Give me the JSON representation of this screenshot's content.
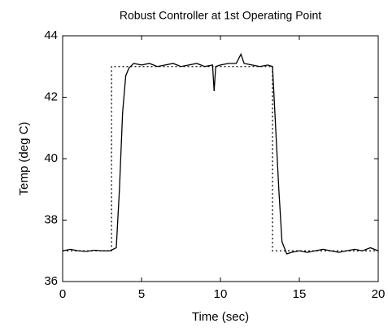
{
  "chart_data": {
    "type": "line",
    "title": "Robust Controller at 1st Operating Point",
    "xlabel": "Time  (sec)",
    "ylabel": "Temp  (deg C)",
    "xlim": [
      0,
      20
    ],
    "xticks": [
      0,
      5,
      10,
      15,
      20
    ],
    "ylim": [
      36,
      44
    ],
    "yticks": [
      36,
      38,
      40,
      42,
      44
    ],
    "grid": false,
    "series": [
      {
        "color": "#000000",
        "line_style": "solid",
        "x": [
          0,
          0.5,
          1,
          1.5,
          2,
          2.5,
          3,
          3.4,
          3.6,
          3.8,
          4.0,
          4.2,
          4.5,
          5,
          5.5,
          6,
          6.5,
          7,
          7.5,
          8,
          8.5,
          9,
          9.5,
          9.6,
          9.7,
          10,
          10.5,
          11,
          11.3,
          11.5,
          12,
          12.5,
          13,
          13.3,
          13.5,
          13.7,
          13.9,
          14.2,
          14.5,
          15,
          15.5,
          16,
          16.5,
          17,
          17.5,
          18,
          18.5,
          19,
          19.5,
          20
        ],
        "values": [
          37,
          37.05,
          37,
          36.98,
          37.02,
          37,
          37,
          37.1,
          39,
          41.5,
          42.7,
          42.95,
          43.1,
          43.05,
          43.1,
          43.0,
          43.05,
          43.1,
          43.0,
          43.05,
          43.1,
          43.0,
          43.05,
          42.2,
          43.0,
          43.05,
          43.1,
          43.1,
          43.4,
          43.1,
          43.05,
          43.0,
          43.05,
          43.0,
          41,
          39,
          37.3,
          36.9,
          36.95,
          37.0,
          36.95,
          37.0,
          37.05,
          37.0,
          36.95,
          37.0,
          37.05,
          37.0,
          37.1,
          37.0
        ]
      },
      {
        "color": "#000000",
        "line_style": "dotted",
        "x": [
          0,
          3.1,
          3.1,
          13.3,
          13.3,
          20
        ],
        "values": [
          37,
          37,
          43,
          43,
          37,
          37
        ]
      }
    ]
  }
}
